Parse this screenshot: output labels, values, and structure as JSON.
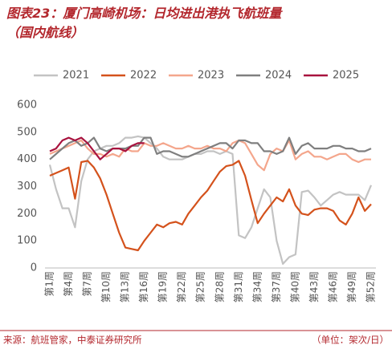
{
  "chart_data": {
    "type": "line",
    "title": "图表23：厦门高崎机场：日均进出港执飞航班量（国内航线）",
    "source": "来源：航班管家，中泰证券研究所",
    "unit": "（单位：架次/日）",
    "categories": [
      "第1周",
      null,
      null,
      "第4周",
      null,
      null,
      "第7周",
      null,
      null,
      "第10周",
      null,
      null,
      "第13周",
      null,
      null,
      "第16周",
      null,
      null,
      "第19周",
      null,
      null,
      "第22周",
      null,
      null,
      "第25周",
      null,
      null,
      "第28周",
      null,
      null,
      "第31周",
      null,
      null,
      "第34周",
      null,
      null,
      "第37周",
      null,
      null,
      "第40周",
      null,
      null,
      "第43周",
      null,
      null,
      "第46周",
      null,
      null,
      "第49周",
      null,
      null,
      "第52周"
    ],
    "ylim": [
      0,
      600
    ],
    "yticks": [
      0,
      100,
      200,
      300,
      400,
      500,
      600
    ],
    "grid": false,
    "legend": "top",
    "series": [
      {
        "name": "2021",
        "color": "#c3c3c3",
        "values": [
          380,
          290,
          220,
          220,
          150,
          320,
          400,
          430,
          440,
          450,
          450,
          460,
          480,
          480,
          485,
          480,
          460,
          440,
          410,
          400,
          400,
          400,
          410,
          420,
          420,
          430,
          430,
          420,
          430,
          420,
          120,
          110,
          150,
          220,
          290,
          260,
          100,
          15,
          40,
          50,
          280,
          285,
          260,
          230,
          250,
          270,
          280,
          270,
          270,
          270,
          250,
          305
        ]
      },
      {
        "name": "2022",
        "color": "#d4521c",
        "values": [
          340,
          350,
          360,
          370,
          255,
          390,
          395,
          370,
          330,
          270,
          200,
          130,
          75,
          70,
          65,
          100,
          130,
          160,
          150,
          165,
          170,
          160,
          200,
          230,
          260,
          285,
          320,
          355,
          375,
          380,
          395,
          340,
          250,
          165,
          200,
          230,
          260,
          245,
          290,
          230,
          200,
          195,
          215,
          220,
          220,
          210,
          175,
          160,
          200,
          260,
          210,
          235
        ]
      },
      {
        "name": "2023",
        "color": "#f4a68c",
        "values": [
          420,
          430,
          440,
          450,
          460,
          470,
          440,
          420,
          420,
          410,
          420,
          410,
          440,
          430,
          430,
          460,
          450,
          450,
          460,
          450,
          440,
          440,
          450,
          440,
          440,
          450,
          440,
          440,
          430,
          460,
          470,
          460,
          420,
          380,
          360,
          420,
          440,
          430,
          470,
          400,
          420,
          430,
          410,
          410,
          400,
          410,
          420,
          420,
          400,
          390,
          400,
          400
        ]
      },
      {
        "name": "2024",
        "color": "#7f7f7f",
        "values": [
          400,
          420,
          440,
          460,
          470,
          450,
          460,
          480,
          440,
          430,
          440,
          440,
          440,
          450,
          450,
          480,
          480,
          420,
          430,
          430,
          420,
          410,
          410,
          420,
          430,
          440,
          450,
          460,
          460,
          440,
          470,
          470,
          460,
          460,
          430,
          430,
          420,
          430,
          480,
          420,
          450,
          460,
          440,
          440,
          440,
          450,
          450,
          440,
          440,
          430,
          430,
          440
        ]
      },
      {
        "name": "2025",
        "color": "#a8123e",
        "values": [
          430,
          440,
          470,
          480,
          470,
          480,
          460,
          430,
          400,
          420,
          440,
          440,
          430,
          450,
          460,
          460,
          null,
          null,
          null,
          null,
          null,
          null,
          null,
          null,
          null,
          null,
          null,
          null,
          null,
          null,
          null,
          null,
          null,
          null,
          null,
          null,
          null,
          null,
          null,
          null,
          null,
          null,
          null,
          null,
          null,
          null,
          null,
          null,
          null,
          null,
          null,
          null
        ]
      }
    ]
  }
}
